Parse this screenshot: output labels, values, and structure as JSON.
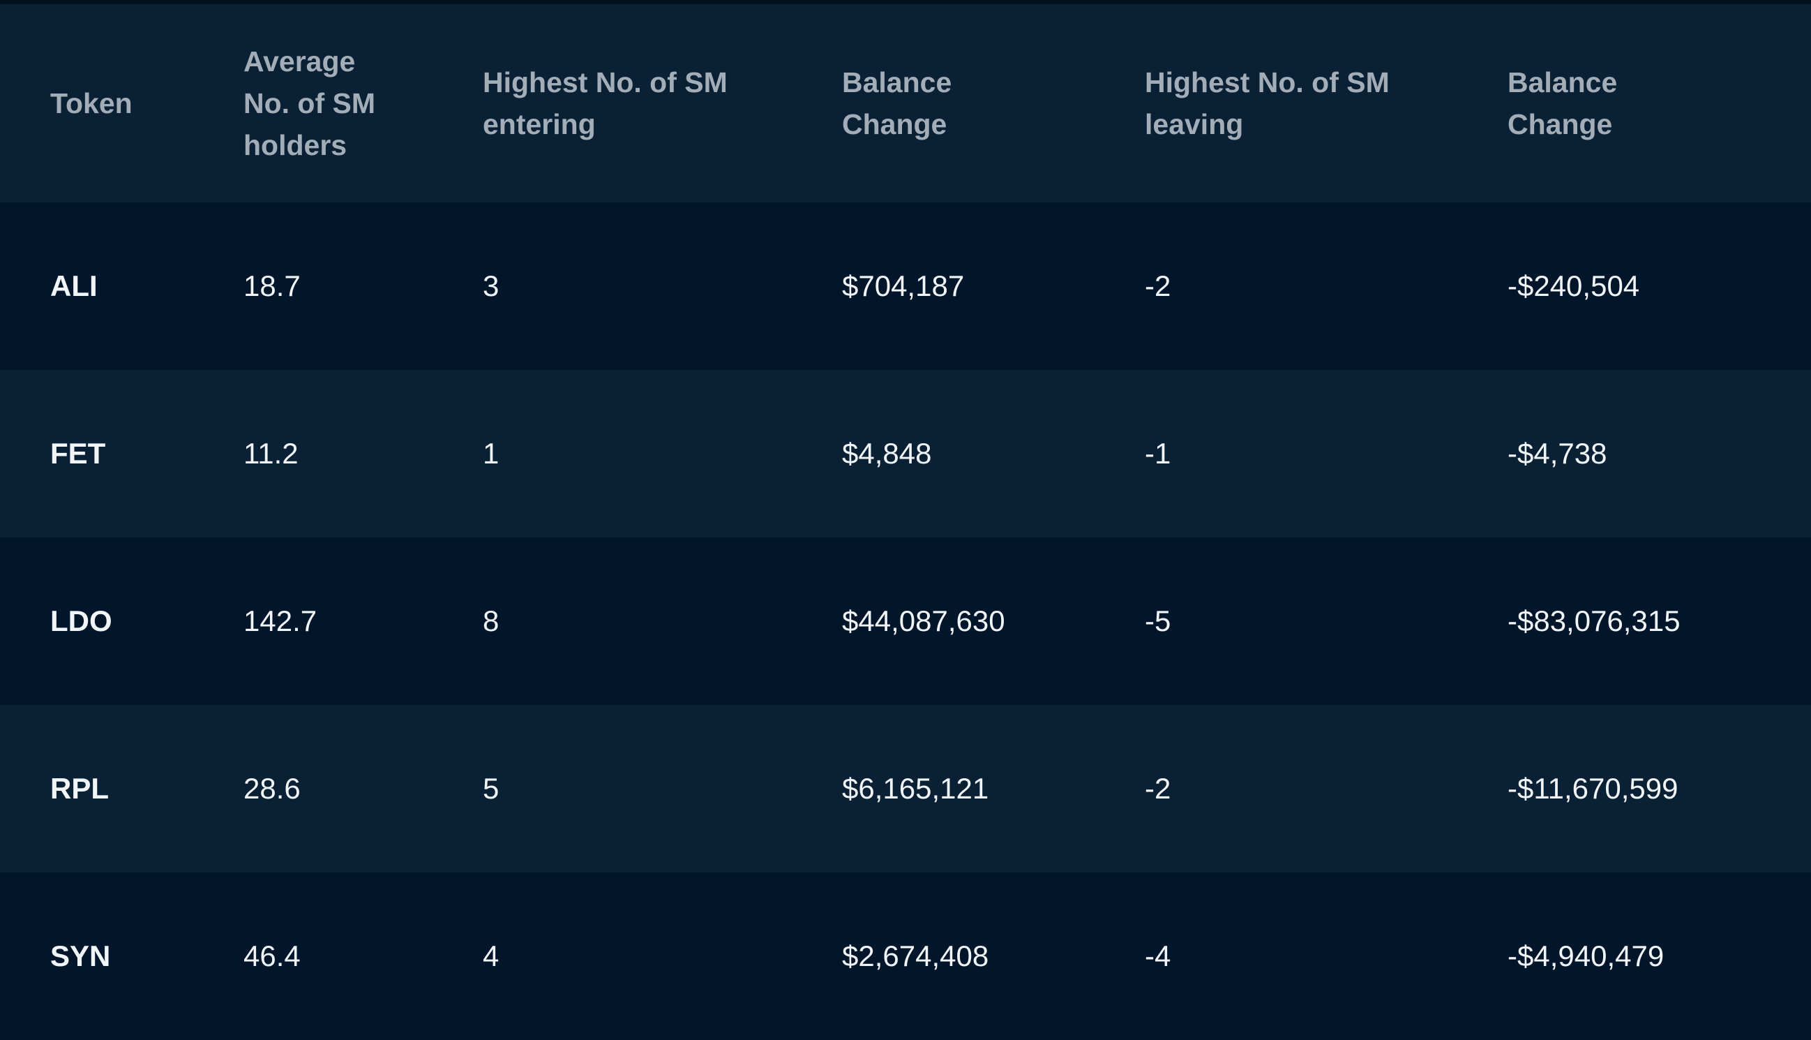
{
  "table": {
    "headers": [
      "Token",
      "Average No. of SM holders",
      "Highest No. of SM entering",
      "Balance Change",
      "Highest No. of SM leaving",
      "Balance Change"
    ],
    "rows": [
      [
        "ALI",
        "18.7",
        "3",
        "$704,187",
        "-2",
        "-$240,504"
      ],
      [
        "FET",
        "11.2",
        "1",
        "$4,848",
        "-1",
        "-$4,738"
      ],
      [
        "LDO",
        "142.7",
        "8",
        "$44,087,630",
        "-5",
        "-$83,076,315"
      ],
      [
        "RPL",
        "28.6",
        "5",
        "$6,165,121",
        "-2",
        "-$11,670,599"
      ],
      [
        "SYN",
        "46.4",
        "4",
        "$2,674,408",
        "-4",
        "-$4,940,479"
      ]
    ]
  },
  "colors": {
    "header_bg": "#0a2135",
    "row_dark": "#02162b",
    "row_light": "#0a2135",
    "header_text": "#a3adb7",
    "cell_text": "#f2f5f8"
  }
}
